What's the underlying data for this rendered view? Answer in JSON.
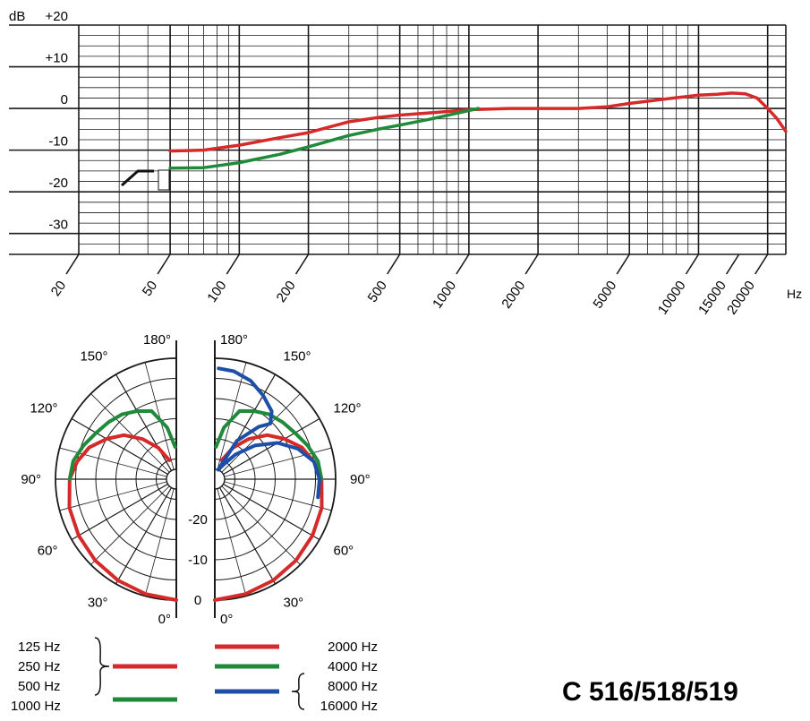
{
  "title": "C 516/518/519",
  "colors": {
    "red": "#d62a2a",
    "green": "#1e8a3a",
    "blue": "#1e4fa8",
    "grid": "#1a1a1a"
  },
  "chart_data": [
    {
      "type": "line",
      "name": "frequency-response",
      "xscale": "log",
      "xlim": [
        20,
        24000
      ],
      "ylim": [
        -35,
        20
      ],
      "ylabel": "dB",
      "xlabel": "Hz",
      "y_ticks": [
        {
          "v": 20,
          "label": "+20"
        },
        {
          "v": 10,
          "label": "+10"
        },
        {
          "v": 0,
          "label": "0"
        },
        {
          "v": -10,
          "label": "-10"
        },
        {
          "v": -20,
          "label": "-20"
        },
        {
          "v": -30,
          "label": "-30"
        }
      ],
      "x_ticks": [
        {
          "v": 20,
          "label": "20"
        },
        {
          "v": 50,
          "label": "50"
        },
        {
          "v": 100,
          "label": "100"
        },
        {
          "v": 200,
          "label": "200"
        },
        {
          "v": 500,
          "label": "500"
        },
        {
          "v": 1000,
          "label": "1000"
        },
        {
          "v": 2000,
          "label": "2000"
        },
        {
          "v": 5000,
          "label": "5000"
        },
        {
          "v": 10000,
          "label": "10000"
        },
        {
          "v": 15000,
          "label": "15000"
        },
        {
          "v": 20000,
          "label": "20000"
        }
      ],
      "series": [
        {
          "color_key": "red",
          "points": [
            [
              50,
              -10.2
            ],
            [
              70,
              -10
            ],
            [
              100,
              -8.8
            ],
            [
              150,
              -7
            ],
            [
              200,
              -5.8
            ],
            [
              300,
              -3.2
            ],
            [
              400,
              -2.2
            ],
            [
              500,
              -1.6
            ],
            [
              700,
              -1
            ],
            [
              1000,
              -0.3
            ],
            [
              1500,
              0
            ],
            [
              2000,
              0
            ],
            [
              3000,
              0
            ],
            [
              4000,
              0.4
            ],
            [
              5000,
              1.2
            ],
            [
              7000,
              2.2
            ],
            [
              10000,
              3.2
            ],
            [
              12000,
              3.4
            ],
            [
              14000,
              3.7
            ],
            [
              16000,
              3.5
            ],
            [
              18000,
              2.5
            ],
            [
              20000,
              0
            ],
            [
              22000,
              -2.5
            ],
            [
              24000,
              -5.5
            ]
          ]
        },
        {
          "color_key": "green",
          "points": [
            [
              50,
              -14.3
            ],
            [
              70,
              -14.2
            ],
            [
              100,
              -13
            ],
            [
              150,
              -11
            ],
            [
              200,
              -9.2
            ],
            [
              300,
              -6.5
            ],
            [
              400,
              -5
            ],
            [
              500,
              -4
            ],
            [
              700,
              -2.4
            ],
            [
              1000,
              -0.5
            ],
            [
              1100,
              0
            ]
          ]
        }
      ]
    },
    {
      "type": "polar",
      "name": "polar-pattern",
      "rlim": [
        -30,
        0
      ],
      "ring_labels": [
        "-20",
        "-10",
        "0"
      ],
      "angle_labels": [
        "0°",
        "30°",
        "60°",
        "90°",
        "120°",
        "150°",
        "180°"
      ],
      "left_series": [
        {
          "color_key": "red",
          "points": [
            [
              0,
              0
            ],
            [
              15,
              -0.5
            ],
            [
              30,
              -1
            ],
            [
              45,
              -1.5
            ],
            [
              60,
              -2
            ],
            [
              75,
              -2.5
            ],
            [
              90,
              -3.5
            ],
            [
              100,
              -5
            ],
            [
              110,
              -7
            ],
            [
              120,
              -10
            ],
            [
              130,
              -13
            ],
            [
              140,
              -17
            ],
            [
              150,
              -21
            ],
            [
              160,
              -25
            ]
          ]
        },
        {
          "color_key": "green",
          "points": [
            [
              90,
              -3.5
            ],
            [
              100,
              -4
            ],
            [
              110,
              -5.5
            ],
            [
              120,
              -7
            ],
            [
              130,
              -8
            ],
            [
              140,
              -9
            ],
            [
              150,
              -10.5
            ],
            [
              160,
              -12
            ],
            [
              170,
              -17
            ],
            [
              178,
              -22
            ]
          ]
        }
      ],
      "right_series": [
        {
          "color_key": "red",
          "points": [
            [
              0,
              0
            ],
            [
              15,
              -0.5
            ],
            [
              30,
              -1
            ],
            [
              45,
              -1.5
            ],
            [
              60,
              -2
            ],
            [
              75,
              -2.5
            ],
            [
              90,
              -3.5
            ],
            [
              100,
              -5
            ],
            [
              110,
              -7
            ],
            [
              120,
              -10
            ],
            [
              130,
              -13
            ],
            [
              140,
              -17
            ],
            [
              150,
              -21
            ],
            [
              160,
              -25
            ]
          ]
        },
        {
          "color_key": "green",
          "points": [
            [
              90,
              -3.5
            ],
            [
              100,
              -4
            ],
            [
              110,
              -5.5
            ],
            [
              120,
              -7
            ],
            [
              130,
              -8
            ],
            [
              140,
              -9
            ],
            [
              150,
              -10.5
            ],
            [
              160,
              -12
            ],
            [
              170,
              -17
            ],
            [
              178,
              -22
            ]
          ]
        },
        {
          "color_key": "blue",
          "points": [
            [
              80,
              -4
            ],
            [
              90,
              -4
            ],
            [
              100,
              -5
            ],
            [
              110,
              -8
            ],
            [
              120,
              -12
            ],
            [
              130,
              -17
            ],
            [
              140,
              -22
            ],
            [
              150,
              -26
            ],
            [
              160,
              -27.5
            ]
          ]
        },
        {
          "color_key": "blue",
          "points": [
            [
              160,
              -27.5
            ],
            [
              150,
              -19
            ],
            [
              140,
              -13
            ],
            [
              135,
              -10.5
            ],
            [
              140,
              -8
            ],
            [
              150,
              -6
            ],
            [
              160,
              -4
            ],
            [
              170,
              -2.8
            ],
            [
              178,
              -2.5
            ]
          ]
        }
      ]
    }
  ],
  "legend": {
    "left": [
      {
        "label": "125 Hz"
      },
      {
        "label": "250 Hz"
      },
      {
        "label": "500 Hz"
      },
      {
        "label": "1000 Hz"
      }
    ],
    "right": [
      {
        "label": "2000 Hz"
      },
      {
        "label": "4000 Hz"
      },
      {
        "label": "8000 Hz"
      },
      {
        "label": "16000 Hz"
      }
    ]
  }
}
